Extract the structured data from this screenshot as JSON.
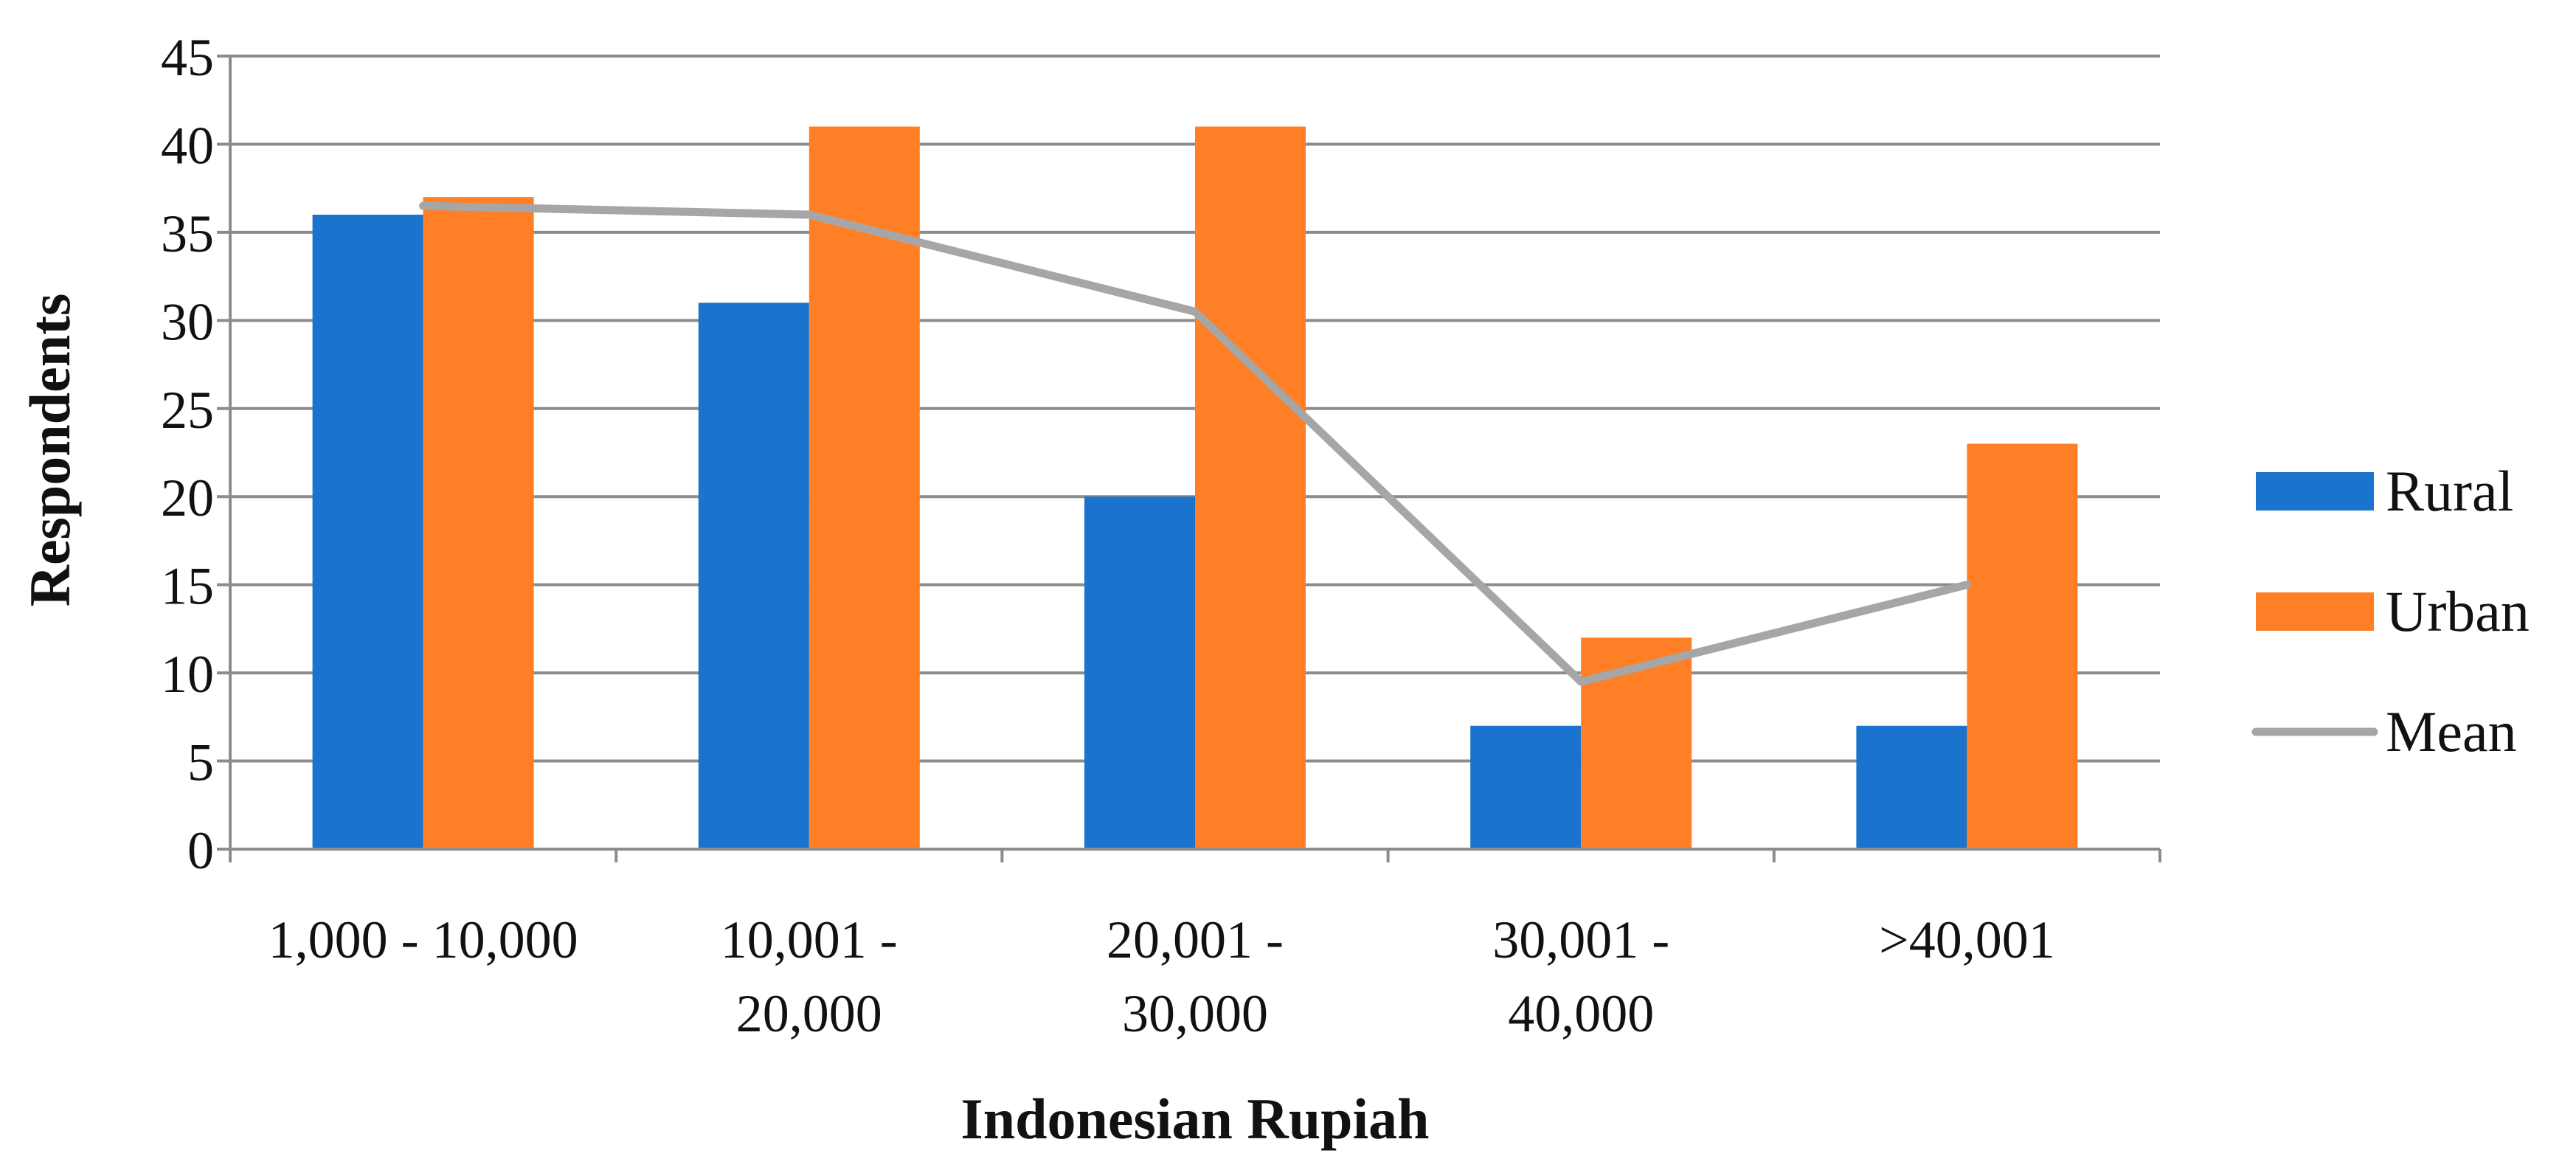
{
  "chart_data": {
    "type": "bar",
    "title": "",
    "xlabel": "Indonesian Rupiah",
    "ylabel": "Respondents",
    "categories": [
      [
        "1,000 - 10,000"
      ],
      [
        "10,001 -",
        "20,000"
      ],
      [
        "20,001 -",
        "30,000"
      ],
      [
        "30,001 -",
        "40,000"
      ],
      [
        ">40,001"
      ]
    ],
    "series": [
      {
        "name": "Rural",
        "type": "bar",
        "color": "#1A73CC",
        "values": [
          36,
          31,
          20,
          7,
          7
        ]
      },
      {
        "name": "Urban",
        "type": "bar",
        "color": "#FF7F27",
        "values": [
          37,
          41,
          41,
          12,
          23
        ]
      },
      {
        "name": "Mean",
        "type": "line",
        "color": "#A6A6A6",
        "values": [
          36.5,
          36,
          30.5,
          9.5,
          15
        ]
      }
    ],
    "ylim": [
      0,
      45
    ],
    "yticks": [
      0,
      5,
      10,
      15,
      20,
      25,
      30,
      35,
      40,
      45
    ],
    "grid": true,
    "legend_position": "right"
  }
}
